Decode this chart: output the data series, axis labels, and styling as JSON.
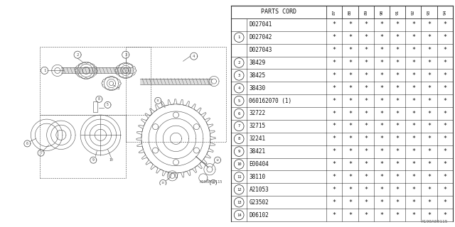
{
  "watermark": "A190A00115",
  "table_header_left": "PARTS CORD",
  "year_cols": [
    "8\n7",
    "8\n8",
    "8\n9",
    "9\n0",
    "9\n1",
    "9\n2",
    "9\n3",
    "9\n4"
  ],
  "rows": [
    {
      "ref": "",
      "part": "D027041",
      "vals": [
        "*",
        "*",
        "*",
        "*",
        "*",
        "*",
        "*",
        "*"
      ]
    },
    {
      "ref": "1",
      "part": "D027042",
      "vals": [
        "*",
        "*",
        "*",
        "*",
        "*",
        "*",
        "*",
        "*"
      ]
    },
    {
      "ref": "",
      "part": "D027043",
      "vals": [
        "*",
        "*",
        "*",
        "*",
        "*",
        "*",
        "*",
        "*"
      ]
    },
    {
      "ref": "2",
      "part": "38429",
      "vals": [
        "*",
        "*",
        "*",
        "*",
        "*",
        "*",
        "*",
        "*"
      ]
    },
    {
      "ref": "3",
      "part": "38425",
      "vals": [
        "*",
        "*",
        "*",
        "*",
        "*",
        "*",
        "*",
        "*"
      ]
    },
    {
      "ref": "4",
      "part": "38430",
      "vals": [
        "*",
        "*",
        "*",
        "*",
        "*",
        "*",
        "*",
        "*"
      ]
    },
    {
      "ref": "5",
      "part": "060162070 (1)",
      "vals": [
        "*",
        "*",
        "*",
        "*",
        "*",
        "*",
        "*",
        "*"
      ]
    },
    {
      "ref": "6",
      "part": "32722",
      "vals": [
        "*",
        "*",
        "*",
        "*",
        "*",
        "*",
        "*",
        "*"
      ]
    },
    {
      "ref": "7",
      "part": "32715",
      "vals": [
        "*",
        "*",
        "*",
        "*",
        "*",
        "*",
        "*",
        "*"
      ]
    },
    {
      "ref": "8",
      "part": "32241",
      "vals": [
        "*",
        "*",
        "*",
        "*",
        "*",
        "*",
        "*",
        "*"
      ]
    },
    {
      "ref": "9",
      "part": "38421",
      "vals": [
        "*",
        "*",
        "*",
        "*",
        "*",
        "*",
        "*",
        "*"
      ]
    },
    {
      "ref": "10",
      "part": "E00404",
      "vals": [
        "*",
        "*",
        "*",
        "*",
        "*",
        "*",
        "*",
        "*"
      ]
    },
    {
      "ref": "11",
      "part": "38110",
      "vals": [
        "*",
        "*",
        "*",
        "*",
        "*",
        "*",
        "*",
        "*"
      ]
    },
    {
      "ref": "12",
      "part": "A21053",
      "vals": [
        "*",
        "*",
        "*",
        "*",
        "*",
        "*",
        "*",
        "*"
      ]
    },
    {
      "ref": "13",
      "part": "G23502",
      "vals": [
        "*",
        "*",
        "*",
        "*",
        "*",
        "*",
        "*",
        "*"
      ]
    },
    {
      "ref": "14",
      "part": "D06102",
      "vals": [
        "*",
        "*",
        "*",
        "*",
        "*",
        "*",
        "*",
        "*"
      ]
    }
  ],
  "bg_color": "#ffffff",
  "lc": "#4a4a4a",
  "diag_bg": "#f5f5f5"
}
